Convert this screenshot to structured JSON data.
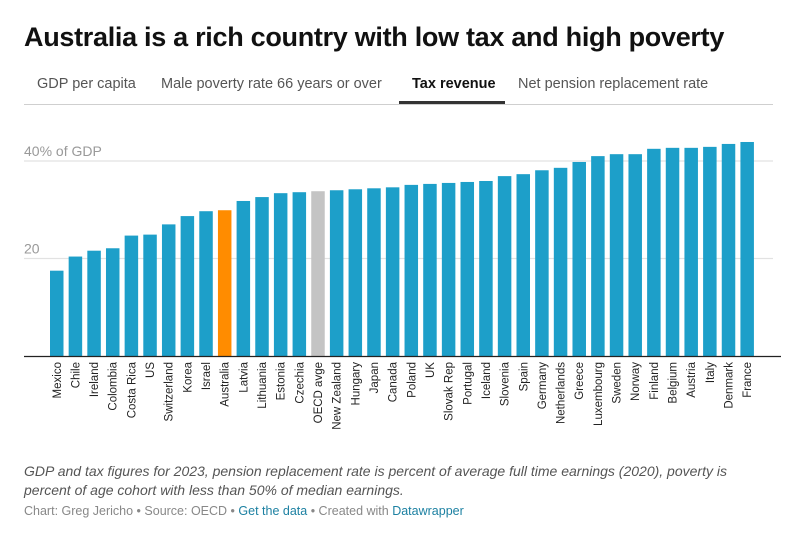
{
  "title": "Australia is a rich country with low tax and high poverty",
  "tabs": [
    {
      "label": "GDP per capita",
      "active": false
    },
    {
      "label": "Male poverty rate 66 years or over",
      "active": false
    },
    {
      "label": "Tax revenue",
      "active": true
    },
    {
      "label": "Net pension replacement rate",
      "active": false
    }
  ],
  "colors": {
    "default_bar": "#1d9fc9",
    "highlight_bar": "#ff8c00",
    "average_bar": "#c4c4c4",
    "gridline": "#e2e2e2",
    "baseline": "#222222",
    "link": "#1d81a2"
  },
  "chart_data": {
    "type": "bar",
    "title": "Tax revenue",
    "xlabel": "",
    "ylabel": "% of GDP",
    "ylim": [
      0,
      45
    ],
    "yticks": [
      {
        "value": 20,
        "label": "20"
      },
      {
        "value": 40,
        "label": "40% of GDP"
      }
    ],
    "grid": true,
    "label_orientation": "vertical",
    "categories": [
      "Mexico",
      "Chile",
      "Ireland",
      "Colombia",
      "Costa Rica",
      "US",
      "Switzerland",
      "Korea",
      "Israel",
      "Australia",
      "Latvia",
      "Lithuania",
      "Estonia",
      "Czechia",
      "OECD avge",
      "New Zealand",
      "Hungary",
      "Japan",
      "Canada",
      "Poland",
      "UK",
      "Slovak Rep",
      "Portugal",
      "Iceland",
      "Slovenia",
      "Spain",
      "Germany",
      "Netherlands",
      "Greece",
      "Luxembourg",
      "Sweden",
      "Norway",
      "Finland",
      "Belgium",
      "Austria",
      "Italy",
      "Denmark",
      "France"
    ],
    "values": [
      17.5,
      20.4,
      21.6,
      22.1,
      24.7,
      24.9,
      27.0,
      28.7,
      29.7,
      29.9,
      31.8,
      32.6,
      33.4,
      33.6,
      33.8,
      34.0,
      34.2,
      34.4,
      34.6,
      35.1,
      35.3,
      35.5,
      35.7,
      35.9,
      36.9,
      37.3,
      38.1,
      38.6,
      39.8,
      41.0,
      41.4,
      41.4,
      42.5,
      42.7,
      42.7,
      42.9,
      43.5,
      43.9
    ],
    "highlight": {
      "Australia": "highlight_bar",
      "OECD avge": "average_bar"
    }
  },
  "notes": "GDP and tax figures for 2023, pension replacement rate is percent of average full time earnings (2020), poverty is percent of age cohort with less than 50% of median earnings.",
  "byline": {
    "chart_prefix": "Chart: Greg Jericho",
    "separator": " • ",
    "source": "Source: OECD",
    "get_data": "Get the data",
    "created_with": "Created with ",
    "datawrapper": "Datawrapper"
  }
}
